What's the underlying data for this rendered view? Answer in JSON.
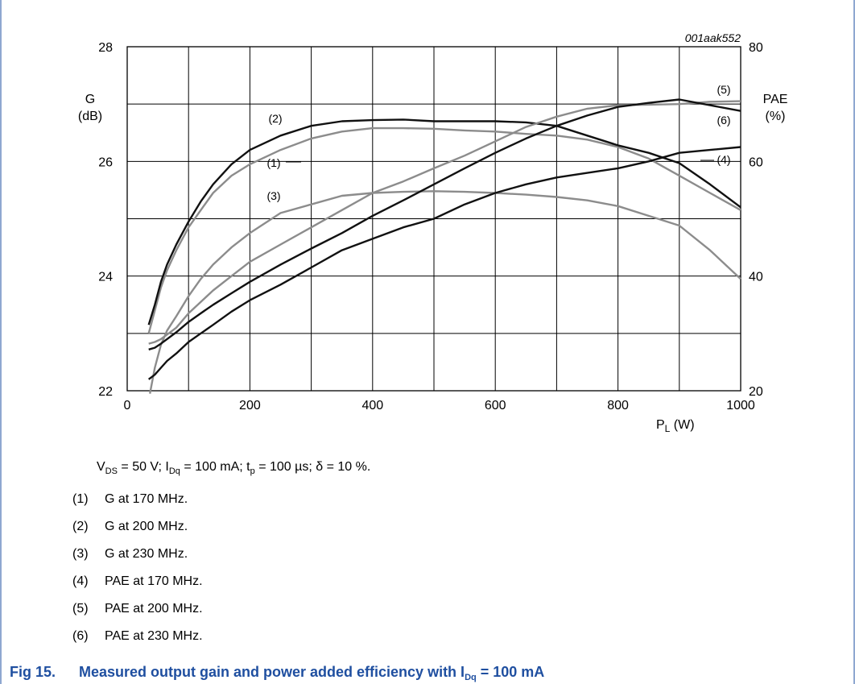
{
  "figure_id": "001aak552",
  "conditions": {
    "vds_prefix": "V",
    "vds_sub": "DS",
    "vds_text": " = 50 V; I",
    "idq_sub": "Dq",
    "idq_text": " = 100 mA; t",
    "tp_sub": "p",
    "tp_text": " = 100 µs; δ = 10 %."
  },
  "notes": [
    {
      "num": "(1)",
      "text": "G at 170 MHz."
    },
    {
      "num": "(2)",
      "text": "G at 200 MHz."
    },
    {
      "num": "(3)",
      "text": "G at 230 MHz."
    },
    {
      "num": "(4)",
      "text": "PAE at 170 MHz."
    },
    {
      "num": "(5)",
      "text": "PAE at 200 MHz."
    },
    {
      "num": "(6)",
      "text": "PAE at 230 MHz."
    }
  ],
  "caption": {
    "figno": "Fig 15.",
    "text": "Measured output gain and power added efficiency with I",
    "sub": "Dq",
    "tail": " = 100 mA"
  },
  "chart_data": {
    "type": "line",
    "xlabel_main": "P",
    "xlabel_sub": "L",
    "xlabel_unit": " (W)",
    "ylabel_left_line1": "G",
    "ylabel_left_line2": "(dB)",
    "ylabel_right_line1": "PAE",
    "ylabel_right_line2": "(%)",
    "xlim": [
      0,
      1000
    ],
    "ylim_left": [
      22,
      28
    ],
    "ylim_right": [
      20,
      80
    ],
    "x_ticks": [
      "0",
      "200",
      "400",
      "600",
      "800",
      "1000"
    ],
    "y_left_ticks": [
      "22",
      "24",
      "26",
      "28"
    ],
    "y_right_ticks": [
      "20",
      "40",
      "60",
      "80"
    ],
    "grid": true,
    "colors": {
      "dark": "#111111",
      "gray": "#8c8c8c",
      "caption": "#1f4fa0"
    },
    "series": [
      {
        "name": "(1)",
        "axis": "left",
        "color": "gray",
        "points": [
          [
            35,
            23.0
          ],
          [
            45,
            23.4
          ],
          [
            55,
            23.8
          ],
          [
            65,
            24.1
          ],
          [
            80,
            24.45
          ],
          [
            100,
            24.85
          ],
          [
            120,
            25.15
          ],
          [
            140,
            25.45
          ],
          [
            170,
            25.75
          ],
          [
            200,
            25.95
          ],
          [
            250,
            26.2
          ],
          [
            300,
            26.4
          ],
          [
            350,
            26.52
          ],
          [
            400,
            26.58
          ],
          [
            450,
            26.58
          ],
          [
            500,
            26.57
          ],
          [
            550,
            26.54
          ],
          [
            600,
            26.52
          ],
          [
            650,
            26.48
          ],
          [
            700,
            26.45
          ],
          [
            750,
            26.38
          ],
          [
            800,
            26.25
          ],
          [
            850,
            26.05
          ],
          [
            900,
            25.75
          ],
          [
            950,
            25.45
          ],
          [
            1000,
            25.15
          ]
        ]
      },
      {
        "name": "(2)",
        "axis": "left",
        "color": "dark",
        "points": [
          [
            35,
            23.15
          ],
          [
            45,
            23.5
          ],
          [
            55,
            23.9
          ],
          [
            65,
            24.2
          ],
          [
            80,
            24.55
          ],
          [
            100,
            24.95
          ],
          [
            120,
            25.3
          ],
          [
            140,
            25.6
          ],
          [
            170,
            25.95
          ],
          [
            200,
            26.2
          ],
          [
            250,
            26.45
          ],
          [
            300,
            26.62
          ],
          [
            350,
            26.7
          ],
          [
            400,
            26.72
          ],
          [
            450,
            26.73
          ],
          [
            500,
            26.7
          ],
          [
            550,
            26.7
          ],
          [
            600,
            26.7
          ],
          [
            650,
            26.68
          ],
          [
            700,
            26.62
          ],
          [
            750,
            26.45
          ],
          [
            800,
            26.28
          ],
          [
            850,
            26.15
          ],
          [
            900,
            25.97
          ],
          [
            950,
            25.6
          ],
          [
            1000,
            25.2
          ]
        ]
      },
      {
        "name": "(3)",
        "axis": "left",
        "color": "gray",
        "points": [
          [
            37,
            21.95
          ],
          [
            45,
            22.4
          ],
          [
            55,
            22.8
          ],
          [
            65,
            23.05
          ],
          [
            80,
            23.3
          ],
          [
            100,
            23.65
          ],
          [
            120,
            23.95
          ],
          [
            140,
            24.2
          ],
          [
            170,
            24.5
          ],
          [
            200,
            24.75
          ],
          [
            250,
            25.1
          ],
          [
            300,
            25.25
          ],
          [
            350,
            25.4
          ],
          [
            400,
            25.45
          ],
          [
            450,
            25.47
          ],
          [
            500,
            25.48
          ],
          [
            550,
            25.47
          ],
          [
            600,
            25.45
          ],
          [
            650,
            25.42
          ],
          [
            700,
            25.38
          ],
          [
            750,
            25.32
          ],
          [
            800,
            25.22
          ],
          [
            850,
            25.05
          ],
          [
            900,
            24.88
          ],
          [
            950,
            24.45
          ],
          [
            1000,
            23.95
          ]
        ]
      },
      {
        "name": "(4)",
        "axis": "right",
        "color": "dark",
        "points": [
          [
            35,
            22.0
          ],
          [
            45,
            22.8
          ],
          [
            55,
            24.0
          ],
          [
            65,
            25.2
          ],
          [
            80,
            26.5
          ],
          [
            100,
            28.5
          ],
          [
            120,
            30.0
          ],
          [
            140,
            31.5
          ],
          [
            170,
            33.8
          ],
          [
            200,
            35.8
          ],
          [
            250,
            38.5
          ],
          [
            300,
            41.5
          ],
          [
            350,
            44.5
          ],
          [
            400,
            46.5
          ],
          [
            450,
            48.5
          ],
          [
            500,
            50.0
          ],
          [
            550,
            52.5
          ],
          [
            600,
            54.5
          ],
          [
            650,
            56.0
          ],
          [
            700,
            57.2
          ],
          [
            750,
            58.0
          ],
          [
            800,
            58.8
          ],
          [
            850,
            60.0
          ],
          [
            900,
            61.5
          ],
          [
            950,
            62.0
          ],
          [
            1000,
            62.5
          ]
        ]
      },
      {
        "name": "(5)",
        "axis": "right",
        "color": "gray",
        "points": [
          [
            35,
            28.2
          ],
          [
            45,
            28.5
          ],
          [
            55,
            29.0
          ],
          [
            65,
            29.8
          ],
          [
            80,
            31.0
          ],
          [
            100,
            33.5
          ],
          [
            120,
            35.5
          ],
          [
            140,
            37.5
          ],
          [
            170,
            40.0
          ],
          [
            200,
            42.5
          ],
          [
            250,
            45.5
          ],
          [
            300,
            48.5
          ],
          [
            350,
            51.5
          ],
          [
            400,
            54.5
          ],
          [
            450,
            56.5
          ],
          [
            500,
            58.8
          ],
          [
            550,
            61.0
          ],
          [
            600,
            63.5
          ],
          [
            650,
            66.0
          ],
          [
            700,
            67.8
          ],
          [
            750,
            69.2
          ],
          [
            800,
            69.8
          ],
          [
            850,
            69.9
          ],
          [
            900,
            70.0
          ],
          [
            950,
            70.4
          ],
          [
            1000,
            70.5
          ]
        ]
      },
      {
        "name": "(6)",
        "axis": "right",
        "color": "dark",
        "points": [
          [
            35,
            27.2
          ],
          [
            45,
            27.5
          ],
          [
            55,
            28.2
          ],
          [
            65,
            29.0
          ],
          [
            80,
            30.2
          ],
          [
            100,
            32.0
          ],
          [
            120,
            33.5
          ],
          [
            140,
            35.0
          ],
          [
            170,
            37.0
          ],
          [
            200,
            39.0
          ],
          [
            250,
            42.0
          ],
          [
            300,
            44.8
          ],
          [
            350,
            47.5
          ],
          [
            400,
            50.5
          ],
          [
            450,
            53.2
          ],
          [
            500,
            56.0
          ],
          [
            550,
            58.8
          ],
          [
            600,
            61.5
          ],
          [
            650,
            64.0
          ],
          [
            700,
            66.2
          ],
          [
            750,
            68.0
          ],
          [
            800,
            69.5
          ],
          [
            850,
            70.2
          ],
          [
            900,
            70.8
          ],
          [
            950,
            69.8
          ],
          [
            1000,
            68.8
          ]
        ]
      }
    ],
    "annotations": [
      {
        "text": "(1)",
        "series": "(1)"
      },
      {
        "text": "(2)",
        "series": "(2)"
      },
      {
        "text": "(3)",
        "series": "(3)"
      },
      {
        "text": "(4)",
        "series": "(4)"
      },
      {
        "text": "(5)",
        "series": "(5)"
      },
      {
        "text": "(6)",
        "series": "(6)"
      }
    ]
  }
}
